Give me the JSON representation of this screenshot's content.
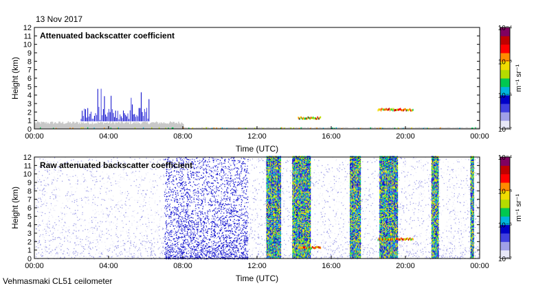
{
  "date_label": "13 Nov 2017",
  "footer_label": "Vehmasmaki CL51 ceilometer",
  "colors": {
    "background": "#ffffff",
    "noise_gray": "#c8c8c8",
    "axis": "#000000"
  },
  "colorbar": {
    "unit_label": "m⁻¹ sr⁻¹",
    "tick_labels": [
      "10⁻⁴",
      "10⁻⁵",
      "10⁻⁶",
      "10⁻⁷"
    ],
    "scale": "log",
    "range": [
      1e-07,
      0.0001
    ],
    "colormap": [
      "#e8e8f8",
      "#a0a0e8",
      "#4040e0",
      "#0000c8",
      "#00b4dc",
      "#00c850",
      "#b4dc00",
      "#f0dc00",
      "#ff8c00",
      "#ff0000",
      "#c00000",
      "#800060"
    ]
  },
  "chart_data": [
    {
      "type": "heatmap",
      "title": "Attenuated backscatter coefficient",
      "xlabel": "Time (UTC)",
      "ylabel": "Height (km)",
      "xlim": [
        "00:00",
        "24:00"
      ],
      "ylim": [
        0,
        12
      ],
      "x_ticks": [
        "00:00",
        "04:00",
        "08:00",
        "12:00",
        "16:00",
        "20:00",
        "00:00"
      ],
      "y_ticks": [
        "0",
        "1",
        "2",
        "3",
        "4",
        "5",
        "6",
        "7",
        "8",
        "9",
        "10",
        "11",
        "12"
      ],
      "features": [
        {
          "kind": "boundary_layer_noise",
          "time_range": [
            0.0,
            8.0
          ],
          "height_top_km": 0.9
        },
        {
          "kind": "convective_spikes",
          "time_range": [
            2.5,
            6.2
          ],
          "max_height_km": 5.0
        },
        {
          "kind": "cloud_layer",
          "time_range": [
            14.2,
            15.4
          ],
          "height_km": 1.3
        },
        {
          "kind": "cloud_layer",
          "time_range": [
            18.5,
            20.4
          ],
          "height_km": 2.3
        },
        {
          "kind": "surface_layer",
          "time_range": [
            0.0,
            24.0
          ],
          "height_top_km": 0.2
        }
      ]
    },
    {
      "type": "heatmap",
      "title": "Raw attenuated backscatter coefficient",
      "xlabel": "Time (UTC)",
      "ylabel": "Height (km)",
      "xlim": [
        "00:00",
        "24:00"
      ],
      "ylim": [
        0,
        12
      ],
      "x_ticks": [
        "00:00",
        "04:00",
        "08:00",
        "12:00",
        "16:00",
        "20:00",
        "00:00"
      ],
      "y_ticks": [
        "0",
        "1",
        "2",
        "3",
        "4",
        "5",
        "6",
        "7",
        "8",
        "9",
        "10",
        "11",
        "12"
      ],
      "features": [
        {
          "kind": "background_noise",
          "time_range": [
            0.0,
            24.0
          ],
          "height_range_km": [
            0.0,
            12.0
          ]
        },
        {
          "kind": "enhanced_noise",
          "time_range": [
            7.0,
            11.5
          ],
          "height_range_km": [
            0.0,
            12.0
          ]
        },
        {
          "kind": "precip_streak",
          "time_range": [
            12.5,
            13.3
          ],
          "height_range_km": [
            0.0,
            12.0
          ]
        },
        {
          "kind": "precip_streak",
          "time_range": [
            13.9,
            14.9
          ],
          "height_range_km": [
            0.0,
            12.0
          ]
        },
        {
          "kind": "precip_streak",
          "time_range": [
            17.0,
            17.6
          ],
          "height_range_km": [
            0.0,
            12.0
          ]
        },
        {
          "kind": "precip_streak",
          "time_range": [
            18.6,
            19.6
          ],
          "height_range_km": [
            0.0,
            12.0
          ]
        },
        {
          "kind": "precip_streak",
          "time_range": [
            21.4,
            21.8
          ],
          "height_range_km": [
            0.0,
            12.0
          ]
        },
        {
          "kind": "precip_streak",
          "time_range": [
            23.5,
            23.7
          ],
          "height_range_km": [
            0.0,
            12.0
          ]
        },
        {
          "kind": "cloud_layer",
          "time_range": [
            14.2,
            15.4
          ],
          "height_km": 1.3
        },
        {
          "kind": "cloud_layer",
          "time_range": [
            18.5,
            20.4
          ],
          "height_km": 2.3
        }
      ]
    }
  ]
}
